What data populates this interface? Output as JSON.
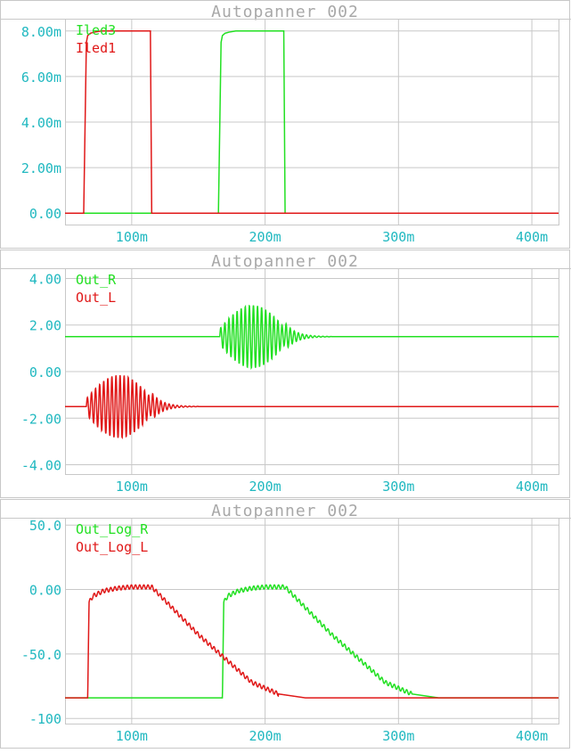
{
  "colors": {
    "background": "#ffffff",
    "grid": "#c8c8c8",
    "title": "#a8a8a8",
    "tick_text": "#20b8c0",
    "green": "#22e022",
    "red": "#e01818"
  },
  "chart_data": [
    {
      "type": "line",
      "title": "Autopanner 002",
      "x_unit": "s",
      "xlim": [
        0.05,
        0.42
      ],
      "ylim": [
        -0.0005,
        0.0085
      ],
      "x_ticks": [
        {
          "value": 0.1,
          "label": "100m"
        },
        {
          "value": 0.2,
          "label": "200m"
        },
        {
          "value": 0.3,
          "label": "300m"
        },
        {
          "value": 0.4,
          "label": "400m"
        }
      ],
      "y_ticks": [
        {
          "value": 0.008,
          "label": "8.00m"
        },
        {
          "value": 0.006,
          "label": "6.00m"
        },
        {
          "value": 0.004,
          "label": "4.00m"
        },
        {
          "value": 0.002,
          "label": "2.00m"
        },
        {
          "value": 0.0,
          "label": "0.00"
        }
      ],
      "grid": true,
      "legend_position": "top-left",
      "series": [
        {
          "name": "Iled3",
          "color": "green",
          "x": [
            0.05,
            0.165,
            0.167,
            0.168,
            0.17,
            0.173,
            0.178,
            0.214,
            0.215,
            0.42
          ],
          "y": [
            0,
            0,
            0.0075,
            0.0078,
            0.0079,
            0.00795,
            0.008,
            0.008,
            0,
            0
          ]
        },
        {
          "name": "Iled1",
          "color": "red",
          "x": [
            0.05,
            0.064,
            0.066,
            0.067,
            0.069,
            0.072,
            0.077,
            0.114,
            0.115,
            0.42
          ],
          "y": [
            0,
            0,
            0.0075,
            0.0078,
            0.0079,
            0.00795,
            0.008,
            0.008,
            0,
            0
          ]
        }
      ]
    },
    {
      "type": "line",
      "title": "Autopanner 002",
      "x_unit": "s",
      "xlim": [
        0.05,
        0.42
      ],
      "ylim": [
        -4.4,
        4.4
      ],
      "x_ticks": [
        {
          "value": 0.1,
          "label": "100m"
        },
        {
          "value": 0.2,
          "label": "200m"
        },
        {
          "value": 0.3,
          "label": "300m"
        },
        {
          "value": 0.4,
          "label": "400m"
        }
      ],
      "y_ticks": [
        {
          "value": 4,
          "label": "4.00"
        },
        {
          "value": 2,
          "label": "2.00"
        },
        {
          "value": 0,
          "label": "0.00"
        },
        {
          "value": -2,
          "label": "-2.00"
        },
        {
          "value": -4,
          "label": "-4.00"
        }
      ],
      "grid": true,
      "legend_position": "top-left",
      "series": [
        {
          "name": "Out_R",
          "color": "green",
          "baseline": 1.5,
          "burst": {
            "start": 0.166,
            "end": 0.215,
            "peak_amplitude": 1.35,
            "decay_end": 0.25,
            "cycles": 16
          }
        },
        {
          "name": "Out_L",
          "color": "red",
          "baseline": -1.5,
          "burst": {
            "start": 0.066,
            "end": 0.115,
            "peak_amplitude": 1.35,
            "decay_end": 0.15,
            "cycles": 16
          }
        }
      ]
    },
    {
      "type": "line",
      "title": "Autopanner 002",
      "x_unit": "s",
      "xlim": [
        0.05,
        0.42
      ],
      "ylim": [
        -104,
        55
      ],
      "x_ticks": [
        {
          "value": 0.1,
          "label": "100m"
        },
        {
          "value": 0.2,
          "label": "200m"
        },
        {
          "value": 0.3,
          "label": "300m"
        },
        {
          "value": 0.4,
          "label": "400m"
        }
      ],
      "y_ticks": [
        {
          "value": 50,
          "label": "50.0"
        },
        {
          "value": 0,
          "label": "0.00"
        },
        {
          "value": -50,
          "label": "-50.0"
        },
        {
          "value": -100,
          "label": "-100"
        }
      ],
      "grid": true,
      "legend_position": "top-left",
      "series": [
        {
          "name": "Out_Log_R",
          "color": "green",
          "x": [
            0.05,
            0.168,
            0.169,
            0.172,
            0.18,
            0.19,
            0.2,
            0.215,
            0.25,
            0.29,
            0.31,
            0.33,
            0.42
          ],
          "y": [
            -84,
            -84,
            -10,
            -5,
            -1,
            1,
            2,
            2,
            -35,
            -72,
            -81,
            -84,
            -84
          ],
          "ripple_range": [
            0.169,
            0.31
          ]
        },
        {
          "name": "Out_Log_L",
          "color": "red",
          "x": [
            0.05,
            0.067,
            0.068,
            0.071,
            0.079,
            0.089,
            0.099,
            0.115,
            0.15,
            0.19,
            0.21,
            0.23,
            0.42
          ],
          "y": [
            -84,
            -84,
            -10,
            -5,
            -1,
            1,
            2,
            2,
            -35,
            -72,
            -81,
            -84,
            -84
          ],
          "ripple_range": [
            0.068,
            0.21
          ]
        }
      ]
    }
  ]
}
